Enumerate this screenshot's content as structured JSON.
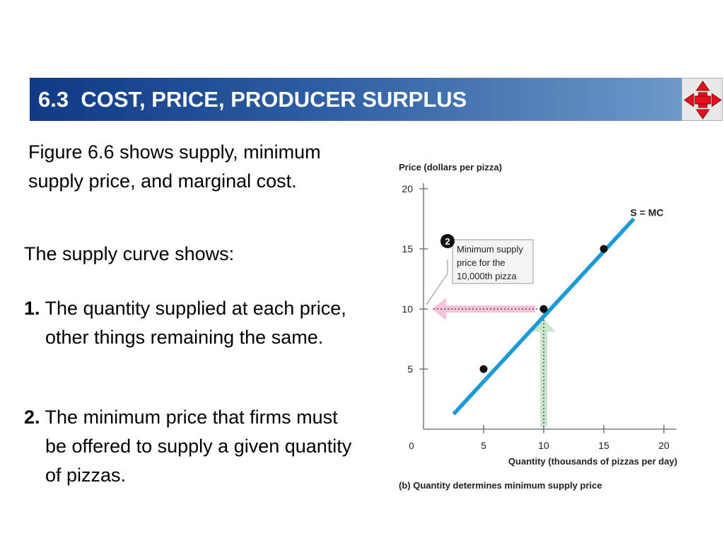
{
  "slide": {
    "section_number": "6.3",
    "title": "COST, PRICE, PRODUCER SURPLUS",
    "nav_icon": "four-way-arrow-icon"
  },
  "content": {
    "intro": "Figure 6.6 shows supply, minimum supply price, and marginal cost.",
    "curve_heading": "The supply curve shows:",
    "points": [
      {
        "number": "1.",
        "text": "The quantity supplied at each price, other things remaining the same."
      },
      {
        "number": "2.",
        "text": "The minimum price that firms must be offered to supply a given quantity of pizzas."
      }
    ]
  },
  "chart_data": {
    "type": "line",
    "ylabel": "Price (dollars per pizza)",
    "xlabel": "Quantity (thousands of pizzas per day)",
    "caption": "(b) Quantity determines minimum supply price",
    "origin_label": "0",
    "xlim": [
      0,
      20
    ],
    "ylim": [
      0,
      20
    ],
    "xticks": [
      5,
      10,
      15,
      20
    ],
    "yticks": [
      5,
      10,
      15,
      20
    ],
    "series": [
      {
        "name": "S = MC",
        "x": [
          2.5,
          17.5
        ],
        "y": [
          1.25,
          17.5
        ],
        "color": "#1a9ad6"
      }
    ],
    "points": [
      {
        "x": 5,
        "y": 5
      },
      {
        "x": 10,
        "y": 10
      },
      {
        "x": 15,
        "y": 15
      }
    ],
    "highlight": {
      "x": 10,
      "y": 10,
      "horizontal_arrow_color": "#f6c2dc",
      "vertical_arrow_color": "#c9e6cc"
    },
    "callout": {
      "marker": "2",
      "lines": [
        "Minimum supply",
        "price for the",
        "10,000th pizza"
      ]
    }
  }
}
